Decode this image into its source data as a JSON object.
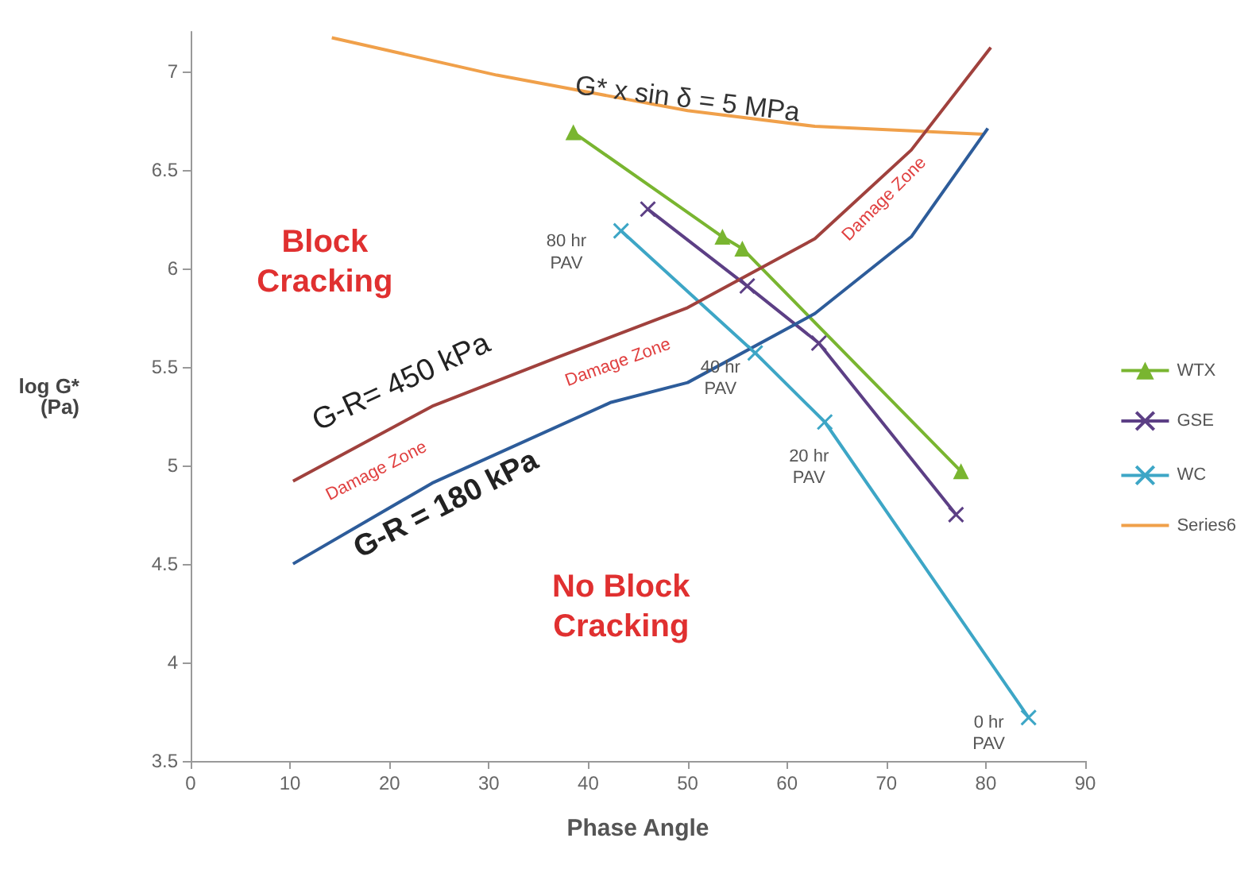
{
  "chart_data": {
    "type": "line",
    "xlabel": "Phase Angle",
    "ylabel": "log G*\n(Pa)",
    "xlim": [
      0,
      90
    ],
    "xticks": [
      0,
      10,
      20,
      30,
      40,
      50,
      60,
      70,
      80,
      90
    ],
    "ylim": [
      3.5,
      7.2
    ],
    "yticks": [
      3.5,
      4,
      4.5,
      5,
      5.5,
      6,
      6.5,
      7
    ],
    "grid": false,
    "legend": "right",
    "series": [
      {
        "name": "WTX",
        "color": "#79b530",
        "marker": "triangle",
        "x": [
          38.5,
          53.5,
          55.5,
          77.5
        ],
        "values": [
          6.69,
          6.16,
          6.1,
          4.97
        ]
      },
      {
        "name": "GSE",
        "color": "#5c3f85",
        "marker": "cross",
        "x": [
          46,
          56,
          63.2,
          77
        ],
        "values": [
          6.3,
          5.91,
          5.62,
          4.75
        ]
      },
      {
        "name": "WC",
        "color": "#3da6c6",
        "marker": "cross",
        "x": [
          43.3,
          56.8,
          63.8,
          84.3
        ],
        "values": [
          6.19,
          5.57,
          5.22,
          3.72
        ]
      },
      {
        "name": "Series6",
        "color": "#f0a04a",
        "marker": "none",
        "x": [
          14.2,
          30.8,
          50,
          62.8,
          79.8
        ],
        "values": [
          7.17,
          6.98,
          6.8,
          6.72,
          6.68
        ]
      },
      {
        "color": "#a0413d",
        "marker": "none",
        "x": [
          10.3,
          24.3,
          37,
          50,
          62.8,
          72.5,
          80.5
        ],
        "values": [
          4.92,
          5.3,
          5.55,
          5.8,
          6.15,
          6.6,
          7.12
        ]
      },
      {
        "color": "#2d5c9a",
        "marker": "none",
        "x": [
          10.3,
          24.3,
          42.3,
          50,
          62.8,
          72.5,
          80.2
        ],
        "values": [
          4.5,
          4.91,
          5.32,
          5.42,
          5.77,
          6.16,
          6.71
        ]
      }
    ],
    "annotations": [
      "G* x sin δ = 5 MPa",
      "Block\nCracking",
      "G-R= 450 kPa",
      "Damage Zone",
      "Damage Zone",
      "Damage Zone",
      "G-R = 180 kPa",
      "No Block\nCracking",
      "80 hr\nPAV",
      "40 hr\nPAV",
      "20 hr\nPAV",
      "0 hr\nPAV"
    ]
  }
}
